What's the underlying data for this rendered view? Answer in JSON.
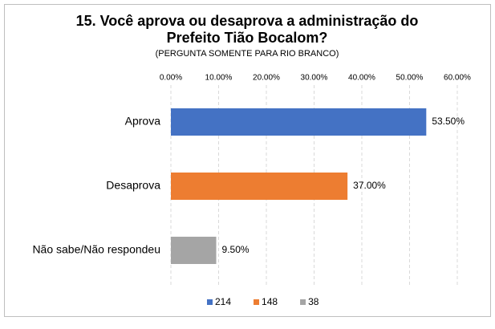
{
  "chart_data": {
    "type": "bar",
    "orientation": "horizontal",
    "title": [
      "15. Você aprova ou desaprova a administração do",
      "Prefeito Tião Bocalom?"
    ],
    "subtitle": "(PERGUNTA SOMENTE PARA RIO BRANCO)",
    "categories": [
      "Aprova",
      "Desaprova",
      "Não sabe/Não respondeu"
    ],
    "series": [
      {
        "name": "214",
        "color": "#4472c4",
        "values": [
          53.5,
          null,
          null
        ],
        "value_labels": [
          "53.50%",
          null,
          null
        ]
      },
      {
        "name": "148",
        "color": "#ed7d31",
        "values": [
          null,
          37,
          null
        ],
        "value_labels": [
          null,
          "37.00%",
          null
        ]
      },
      {
        "name": "38",
        "color": "#a5a5a5",
        "values": [
          null,
          null,
          9.5
        ],
        "value_labels": [
          null,
          null,
          "9.50%"
        ]
      }
    ],
    "xlim": [
      0,
      60
    ],
    "xticks": [
      {
        "value": 0,
        "label": "0.00%"
      },
      {
        "value": 10,
        "label": "10.00%"
      },
      {
        "value": 20,
        "label": "20.00%"
      },
      {
        "value": 30,
        "label": "30.00%"
      },
      {
        "value": 40,
        "label": "40.00%"
      },
      {
        "value": 50,
        "label": "50.00%"
      },
      {
        "value": 60,
        "label": "60.00%"
      }
    ],
    "grid": true,
    "legend": "bottom"
  }
}
